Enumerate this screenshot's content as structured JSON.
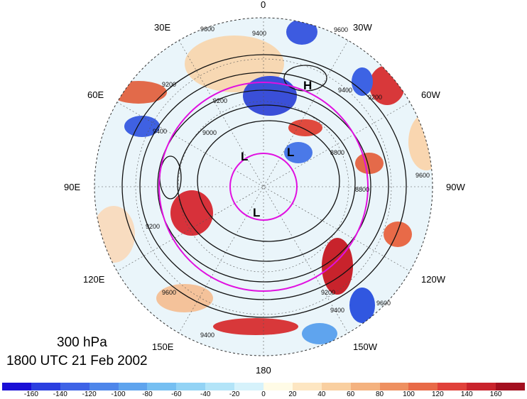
{
  "caption": {
    "level": "300 hPa",
    "datetime": "1800 UTC 21 Feb 2002"
  },
  "longitude_labels": {
    "lon_0": "0",
    "lon_30w": "30W",
    "lon_60w": "60W",
    "lon_90w": "90W",
    "lon_120w": "120W",
    "lon_150w": "150W",
    "lon_180": "180",
    "lon_150e": "150E",
    "lon_120e": "120E",
    "lon_90e": "90E",
    "lon_60e": "60E",
    "lon_30e": "30E"
  },
  "pressure_centers": {
    "high_1": "H",
    "low_1": "L",
    "low_2": "L",
    "low_3": "L"
  },
  "contour_labels": [
    "9600",
    "9400",
    "9200",
    "9000",
    "8800",
    "9600",
    "9400",
    "9200",
    "8800",
    "9200",
    "9400",
    "9600",
    "9200",
    "9400",
    "9600",
    "9200",
    "9400",
    "9600"
  ],
  "colorbar": {
    "colors": [
      "#1a0fd6",
      "#2b3fe0",
      "#3e63e6",
      "#4e86ea",
      "#5fa4ee",
      "#76bff2",
      "#93d3f5",
      "#b3e4f8",
      "#d6f2fb",
      "#fffbe6",
      "#fde6c2",
      "#f9cfa0",
      "#f4b27f",
      "#ee9060",
      "#e86a48",
      "#e0413a",
      "#c9232c",
      "#a30f1f"
    ],
    "tick_labels": [
      "-160",
      "-140",
      "-120",
      "-100",
      "-80",
      "-60",
      "-40",
      "-20",
      "0",
      "20",
      "40",
      "60",
      "80",
      "100",
      "120",
      "140",
      "160"
    ]
  }
}
